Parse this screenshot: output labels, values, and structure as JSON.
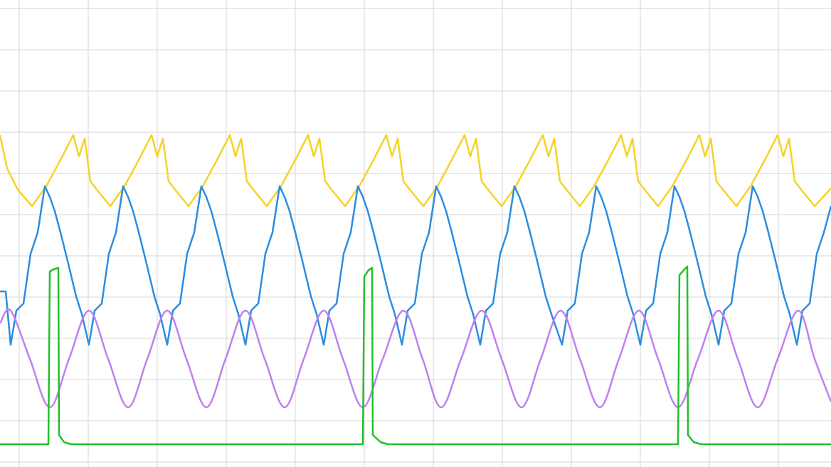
{
  "chart_data": {
    "type": "line",
    "xlim": [
      0,
      1168
    ],
    "ylim": [
      0,
      657
    ],
    "xticks": [
      27,
      124,
      221,
      318,
      415,
      512,
      609,
      706,
      803,
      900,
      997,
      1094
    ],
    "yticks": [
      7,
      65,
      123,
      181,
      239,
      297,
      355,
      413,
      471,
      529,
      587,
      645
    ],
    "grid": true,
    "series": [
      {
        "color": "#f5d327",
        "x": [
          0,
          10,
          25,
          45,
          65,
          85,
          103,
          111,
          119,
          127,
          137,
          155,
          175,
          195,
          213,
          221,
          229,
          237,
          247,
          265,
          285,
          305,
          323,
          331,
          339,
          347,
          357,
          375,
          395,
          415,
          433,
          441,
          449,
          457,
          467,
          485,
          505,
          525,
          543,
          551,
          559,
          567,
          577,
          595,
          615,
          635,
          653,
          661,
          669,
          677,
          687,
          705,
          725,
          745,
          763,
          771,
          779,
          787,
          797,
          815,
          835,
          855,
          873,
          881,
          889,
          897,
          907,
          925,
          945,
          965,
          983,
          991,
          999,
          1007,
          1017,
          1035,
          1055,
          1075,
          1093,
          1101,
          1109,
          1117,
          1127,
          1145,
          1168
        ],
        "values": [
          467,
          420,
          390,
          367,
          395,
          432,
          467,
          437,
          462,
          402,
          389,
          367,
          395,
          432,
          467,
          437,
          462,
          402,
          389,
          367,
          395,
          432,
          467,
          437,
          462,
          402,
          389,
          367,
          395,
          432,
          467,
          437,
          462,
          402,
          389,
          367,
          395,
          432,
          467,
          437,
          462,
          402,
          389,
          367,
          395,
          432,
          467,
          437,
          462,
          402,
          389,
          367,
          395,
          432,
          467,
          437,
          462,
          402,
          389,
          367,
          395,
          432,
          467,
          437,
          462,
          402,
          389,
          367,
          395,
          432,
          467,
          437,
          462,
          402,
          389,
          367,
          395,
          432,
          467,
          437,
          462,
          402,
          389,
          367,
          392
        ]
      },
      {
        "color": "#2b8de0",
        "x": [
          0,
          8,
          15,
          23,
          33,
          43,
          53,
          63,
          70,
          77,
          85,
          95,
          107,
          115,
          125,
          133,
          143,
          153,
          163,
          173,
          180,
          187,
          195,
          205,
          217,
          225,
          235,
          243,
          253,
          263,
          273,
          283,
          290,
          297,
          305,
          315,
          327,
          335,
          345,
          353,
          363,
          373,
          383,
          393,
          400,
          407,
          415,
          425,
          437,
          445,
          455,
          463,
          473,
          483,
          493,
          503,
          510,
          517,
          525,
          535,
          547,
          555,
          565,
          573,
          583,
          593,
          603,
          613,
          620,
          627,
          635,
          645,
          657,
          665,
          675,
          683,
          693,
          703,
          713,
          723,
          730,
          737,
          745,
          755,
          767,
          775,
          790,
          798,
          808,
          818,
          828,
          838,
          845,
          852,
          860,
          870,
          882,
          890,
          900,
          908,
          918,
          928,
          938,
          948,
          955,
          962,
          970,
          980,
          992,
          1000,
          1010,
          1018,
          1028,
          1038,
          1048,
          1058,
          1065,
          1072,
          1080,
          1090,
          1102,
          1110,
          1120,
          1128,
          1138,
          1148,
          1158,
          1168
        ],
        "values": [
          247,
          247,
          172,
          220,
          230,
          300,
          330,
          395,
          380,
          360,
          330,
          290,
          240,
          215,
          172,
          220,
          230,
          300,
          330,
          395,
          380,
          360,
          330,
          290,
          240,
          215,
          172,
          220,
          230,
          300,
          330,
          395,
          380,
          360,
          330,
          290,
          240,
          215,
          172,
          220,
          230,
          300,
          330,
          395,
          380,
          360,
          330,
          290,
          240,
          215,
          172,
          220,
          230,
          300,
          330,
          395,
          380,
          360,
          330,
          290,
          240,
          215,
          172,
          220,
          230,
          300,
          330,
          395,
          380,
          360,
          330,
          290,
          240,
          215,
          172,
          220,
          230,
          300,
          330,
          395,
          380,
          360,
          330,
          290,
          240,
          215,
          172,
          220,
          230,
          300,
          330,
          395,
          380,
          360,
          330,
          290,
          240,
          215,
          172,
          220,
          230,
          300,
          330,
          395,
          380,
          360,
          330,
          290,
          240,
          215,
          172,
          220,
          230,
          300,
          330,
          395,
          380,
          360,
          330,
          290,
          240,
          215,
          172,
          220,
          230,
          300,
          330,
          367
        ]
      },
      {
        "color": "#bf7ff0",
        "smooth": true,
        "x": [
          0,
          15,
          42,
          70,
          97,
          125,
          152,
          180,
          207,
          235,
          262,
          290,
          317,
          345,
          372,
          400,
          427,
          455,
          482,
          510,
          538,
          567,
          594,
          620,
          648,
          677,
          705,
          733,
          760,
          788,
          815,
          843,
          870,
          898,
          925,
          953,
          981,
          1010,
          1037,
          1065,
          1093,
          1122,
          1145,
          1168
        ],
        "values": [
          202,
          220,
          152,
          84,
          152,
          220,
          152,
          84,
          152,
          220,
          152,
          84,
          152,
          220,
          152,
          84,
          152,
          220,
          152,
          84,
          152,
          220,
          152,
          84,
          152,
          220,
          152,
          84,
          152,
          220,
          152,
          84,
          152,
          220,
          152,
          84,
          152,
          220,
          152,
          84,
          152,
          220,
          152,
          92
        ]
      },
      {
        "color": "#22c02a",
        "x": [
          0,
          68,
          70,
          75,
          82,
          83,
          90,
          100,
          510,
          512,
          518,
          523,
          524,
          535,
          545,
          953,
          955,
          962,
          966,
          967,
          975,
          985,
          1168
        ],
        "values": [
          32,
          32,
          275,
          278,
          280,
          45,
          35,
          32,
          32,
          268,
          277,
          280,
          45,
          35,
          32,
          32,
          270,
          278,
          282,
          45,
          35,
          32,
          32
        ]
      }
    ]
  }
}
